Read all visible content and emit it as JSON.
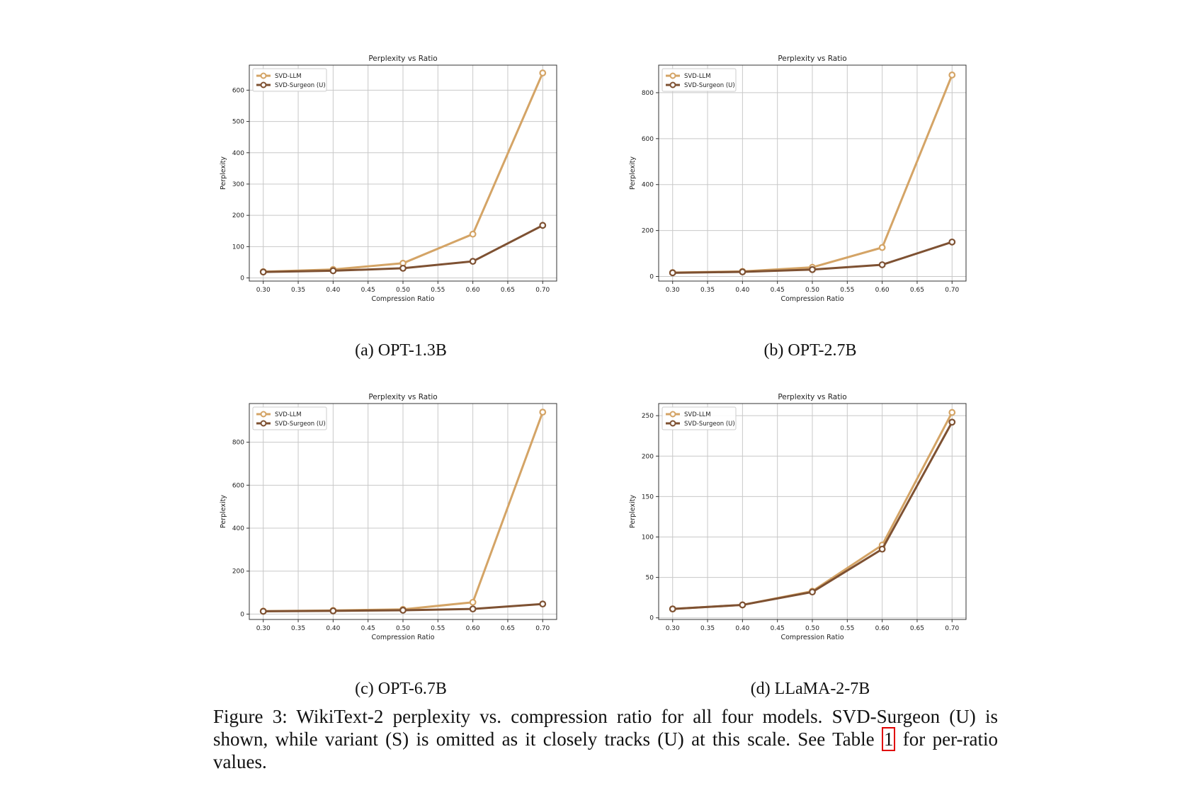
{
  "caption": {
    "label": "Figure 3:",
    "text_before_ref": "WikiText-2 perplexity vs. compression ratio for all four models. SVD-Surgeon (U) is shown, while variant (S) is omitted as it closely tracks (U) at this scale. See Table ",
    "ref": "1",
    "text_after_ref": " for per-ratio values."
  },
  "colors": {
    "svd_llm": "#d4a466",
    "svd_surgeon": "#7e5132"
  },
  "chart_data": [
    {
      "type": "line",
      "subcaption": "(a) OPT-1.3B",
      "title": "Perplexity vs Ratio",
      "xlabel": "Compression Ratio",
      "ylabel": "Perplexity",
      "xlim": [
        0.28,
        0.72
      ],
      "ylim": [
        -10,
        680
      ],
      "xticks": [
        0.3,
        0.35,
        0.4,
        0.45,
        0.5,
        0.55,
        0.6,
        0.65,
        0.7
      ],
      "yticks": [
        0,
        100,
        200,
        300,
        400,
        500,
        600
      ],
      "grid": true,
      "legend": "upper-left",
      "x": [
        0.3,
        0.4,
        0.5,
        0.6,
        0.7
      ],
      "series": [
        {
          "name": "SVD-LLM",
          "values": [
            20,
            27,
            47,
            140,
            655
          ]
        },
        {
          "name": "SVD-Surgeon (U)",
          "values": [
            19,
            23,
            31,
            53,
            168
          ]
        }
      ]
    },
    {
      "type": "line",
      "subcaption": "(b) OPT-2.7B",
      "title": "Perplexity vs Ratio",
      "xlabel": "Compression Ratio",
      "ylabel": "Perplexity",
      "xlim": [
        0.28,
        0.72
      ],
      "ylim": [
        -20,
        920
      ],
      "xticks": [
        0.3,
        0.35,
        0.4,
        0.45,
        0.5,
        0.55,
        0.6,
        0.65,
        0.7
      ],
      "yticks": [
        0,
        200,
        400,
        600,
        800
      ],
      "grid": true,
      "legend": "upper-left",
      "x": [
        0.3,
        0.4,
        0.5,
        0.6,
        0.7
      ],
      "series": [
        {
          "name": "SVD-LLM",
          "values": [
            17,
            22,
            40,
            126,
            877
          ]
        },
        {
          "name": "SVD-Surgeon (U)",
          "values": [
            16,
            20,
            30,
            51,
            150
          ]
        }
      ]
    },
    {
      "type": "line",
      "subcaption": "(c) OPT-6.7B",
      "title": "Perplexity vs Ratio",
      "xlabel": "Compression Ratio",
      "ylabel": "Perplexity",
      "xlim": [
        0.28,
        0.72
      ],
      "ylim": [
        -25,
        980
      ],
      "xticks": [
        0.3,
        0.35,
        0.4,
        0.45,
        0.5,
        0.55,
        0.6,
        0.65,
        0.7
      ],
      "yticks": [
        0,
        200,
        400,
        600,
        800
      ],
      "grid": true,
      "legend": "upper-left",
      "x": [
        0.3,
        0.4,
        0.5,
        0.6,
        0.7
      ],
      "series": [
        {
          "name": "SVD-LLM",
          "values": [
            14,
            17,
            22,
            55,
            940
          ]
        },
        {
          "name": "SVD-Surgeon (U)",
          "values": [
            13,
            15,
            18,
            24,
            47
          ]
        }
      ]
    },
    {
      "type": "line",
      "subcaption": "(d) LLaMA-2-7B",
      "title": "Perplexity vs Ratio",
      "xlabel": "Compression Ratio",
      "ylabel": "Perplexity",
      "xlim": [
        0.28,
        0.72
      ],
      "ylim": [
        -2,
        265
      ],
      "xticks": [
        0.3,
        0.35,
        0.4,
        0.45,
        0.5,
        0.55,
        0.6,
        0.65,
        0.7
      ],
      "yticks": [
        0,
        50,
        100,
        150,
        200,
        250
      ],
      "grid": true,
      "legend": "upper-left",
      "x": [
        0.3,
        0.4,
        0.5,
        0.6,
        0.7
      ],
      "series": [
        {
          "name": "SVD-LLM",
          "values": [
            11,
            16,
            33,
            90,
            254
          ]
        },
        {
          "name": "SVD-Surgeon (U)",
          "values": [
            11,
            16,
            32,
            85,
            242
          ]
        }
      ]
    }
  ]
}
